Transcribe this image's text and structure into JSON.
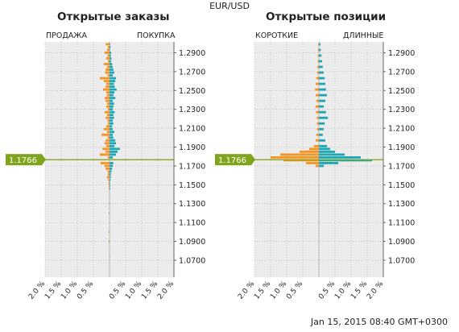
{
  "symbol": "EUR/USD",
  "timestamp": "Jan 15, 2015 08:40 GMT+0300",
  "current_price_label": "1.1766",
  "colors": {
    "left_side": "#f7931e",
    "right_side": "#1ca7b4",
    "price_line": "#7fa51c",
    "plot_bg": "#ececec",
    "grid": "#aaaaaa"
  },
  "panels": [
    {
      "title": "Открытые заказы",
      "left_label": "ПРОДАЖА",
      "right_label": "ПОКУПКА"
    },
    {
      "title": "Открытые позиции",
      "left_label": "КОРОТКИЕ",
      "right_label": "ДЛИННЫЕ"
    }
  ],
  "chart_data": [
    {
      "type": "bar",
      "title": "Открытые заказы",
      "orientation": "horizontal-butterfly",
      "y_ticks": [
        "1.2900",
        "1.2700",
        "1.2500",
        "1.2300",
        "1.2100",
        "1.1900",
        "1.1700",
        "1.1500",
        "1.1300",
        "1.1100",
        "1.0900",
        "1.0700"
      ],
      "x_ticks": [
        "2.0 %",
        "1.5 %",
        "1.0 %",
        "0.5 %",
        "0.5 %",
        "1.0 %",
        "1.5 %",
        "2.0 %"
      ],
      "ylim": [
        1.052,
        1.3015
      ],
      "xlim": [
        -2.0,
        2.0
      ],
      "current_price": 1.1766,
      "series": [
        {
          "name": "ПРОДАЖА",
          "side": "left",
          "y": [
            1.299,
            1.296,
            1.293,
            1.29,
            1.287,
            1.284,
            1.281,
            1.278,
            1.275,
            1.272,
            1.269,
            1.266,
            1.263,
            1.26,
            1.257,
            1.254,
            1.251,
            1.248,
            1.245,
            1.242,
            1.239,
            1.236,
            1.233,
            1.23,
            1.227,
            1.224,
            1.221,
            1.218,
            1.215,
            1.212,
            1.209,
            1.206,
            1.203,
            1.2,
            1.197,
            1.194,
            1.191,
            1.188,
            1.185,
            1.182,
            1.179,
            1.176,
            1.173,
            1.17,
            1.167,
            1.164,
            1.161,
            1.158,
            1.155,
            1.152,
            1.149,
            1.146,
            1.138,
            1.13,
            1.12,
            1.1,
            1.09,
            1.075
          ],
          "values": [
            0.12,
            0.05,
            0.08,
            0.15,
            0.06,
            0.1,
            0.05,
            0.18,
            0.08,
            0.12,
            0.14,
            0.06,
            0.3,
            0.18,
            0.1,
            0.12,
            0.2,
            0.1,
            0.08,
            0.15,
            0.12,
            0.07,
            0.1,
            0.05,
            0.15,
            0.08,
            0.12,
            0.06,
            0.05,
            0.1,
            0.18,
            0.08,
            0.25,
            0.06,
            0.12,
            0.15,
            0.1,
            0.22,
            0.12,
            0.3,
            0.05,
            0.0,
            0.28,
            0.15,
            0.12,
            0.06,
            0.05,
            0.08,
            0.04,
            0.03,
            0.02,
            0.02,
            0.01,
            0.01,
            0.02,
            0.02,
            0.02,
            0.01
          ]
        },
        {
          "name": "ПОКУПКА",
          "side": "right",
          "y": [
            1.299,
            1.296,
            1.293,
            1.29,
            1.287,
            1.284,
            1.281,
            1.278,
            1.275,
            1.272,
            1.269,
            1.266,
            1.263,
            1.26,
            1.257,
            1.254,
            1.251,
            1.248,
            1.245,
            1.242,
            1.239,
            1.236,
            1.233,
            1.23,
            1.227,
            1.224,
            1.221,
            1.218,
            1.215,
            1.212,
            1.209,
            1.206,
            1.203,
            1.2,
            1.197,
            1.194,
            1.191,
            1.188,
            1.185,
            1.182,
            1.179,
            1.176,
            1.173,
            1.17,
            1.167,
            1.164,
            1.161,
            1.158,
            1.155,
            1.152,
            1.149,
            1.146,
            1.138,
            1.13,
            1.12,
            1.1,
            1.09,
            1.075
          ],
          "values": [
            0.02,
            0.03,
            0.02,
            0.05,
            0.04,
            0.06,
            0.05,
            0.08,
            0.1,
            0.12,
            0.15,
            0.1,
            0.2,
            0.18,
            0.14,
            0.16,
            0.22,
            0.15,
            0.12,
            0.18,
            0.1,
            0.14,
            0.12,
            0.1,
            0.16,
            0.12,
            0.14,
            0.1,
            0.12,
            0.08,
            0.1,
            0.15,
            0.1,
            0.12,
            0.18,
            0.2,
            0.15,
            0.32,
            0.25,
            0.2,
            0.1,
            0.0,
            0.12,
            0.1,
            0.08,
            0.06,
            0.04,
            0.04,
            0.03,
            0.02,
            0.02,
            0.01,
            0.0,
            0.0,
            0.0,
            0.0,
            0.0,
            0.0
          ]
        }
      ]
    },
    {
      "type": "bar",
      "title": "Открытые позиции",
      "orientation": "horizontal-butterfly",
      "y_ticks": [
        "1.2900",
        "1.2700",
        "1.2500",
        "1.2300",
        "1.2100",
        "1.1900",
        "1.1700",
        "1.1500",
        "1.1300",
        "1.1100",
        "1.0900",
        "1.0700"
      ],
      "x_ticks": [
        "2.0 %",
        "1.5 %",
        "1.0 %",
        "0.5 %",
        "0.5 %",
        "1.0 %",
        "1.5 %",
        "2.0 %"
      ],
      "ylim": [
        1.052,
        1.3015
      ],
      "xlim": [
        -2.0,
        2.0
      ],
      "current_price": 1.1766,
      "series": [
        {
          "name": "КОРОТКИЕ",
          "side": "left",
          "y": [
            1.299,
            1.293,
            1.287,
            1.281,
            1.275,
            1.269,
            1.263,
            1.257,
            1.251,
            1.245,
            1.239,
            1.233,
            1.227,
            1.221,
            1.215,
            1.209,
            1.203,
            1.197,
            1.191,
            1.188,
            1.185,
            1.182,
            1.179,
            1.176,
            1.173,
            1.17
          ],
          "values": [
            0.02,
            0.03,
            0.03,
            0.04,
            0.05,
            0.06,
            0.08,
            0.1,
            0.12,
            0.1,
            0.08,
            0.1,
            0.09,
            0.07,
            0.06,
            0.06,
            0.08,
            0.1,
            0.15,
            0.3,
            0.6,
            1.2,
            1.5,
            1.1,
            0.4,
            0.1
          ]
        },
        {
          "name": "ДЛИННЫЕ",
          "side": "right",
          "y": [
            1.299,
            1.293,
            1.287,
            1.281,
            1.275,
            1.269,
            1.263,
            1.257,
            1.251,
            1.245,
            1.239,
            1.233,
            1.227,
            1.221,
            1.215,
            1.209,
            1.203,
            1.197,
            1.191,
            1.188,
            1.185,
            1.182,
            1.179,
            1.176,
            1.173,
            1.17
          ],
          "values": [
            0.05,
            0.06,
            0.08,
            0.1,
            0.12,
            0.15,
            0.18,
            0.2,
            0.22,
            0.25,
            0.2,
            0.15,
            0.22,
            0.28,
            0.18,
            0.15,
            0.12,
            0.2,
            0.25,
            0.35,
            0.5,
            0.8,
            1.3,
            1.65,
            0.6,
            0.15
          ]
        }
      ]
    }
  ]
}
